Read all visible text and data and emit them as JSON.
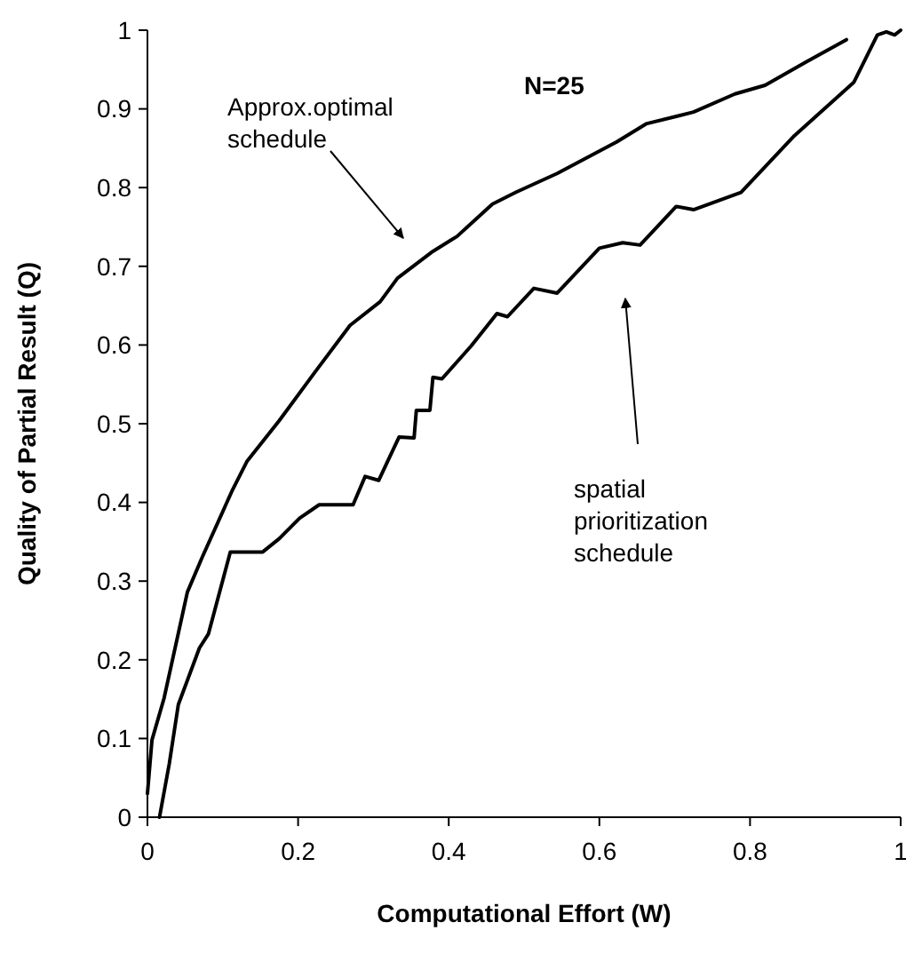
{
  "chart_data": {
    "type": "line",
    "xlabel": "Computational Effort (W)",
    "ylabel": "Quality of Partial Result (Q)",
    "xlim": [
      0,
      1
    ],
    "ylim": [
      0,
      1
    ],
    "xticks": [
      0,
      0.2,
      0.4,
      0.6,
      0.8,
      1
    ],
    "yticks": [
      0,
      0.1,
      0.2,
      0.3,
      0.4,
      0.5,
      0.6,
      0.7,
      0.8,
      0.9,
      1
    ],
    "grid": false,
    "marker": "none",
    "line_style": "solid",
    "annotations": [
      "Approx.optimal\nschedule",
      "N=25",
      "spatial\nprioritization\nschedule"
    ],
    "series": [
      {
        "color": "#000000",
        "x": [
          0,
          0.006,
          0.022,
          0.053,
          0.073,
          0.112,
          0.132,
          0.175,
          0.222,
          0.269,
          0.309,
          0.332,
          0.379,
          0.411,
          0.458,
          0.489,
          0.544,
          0.623,
          0.662,
          0.725,
          0.78,
          0.82,
          0.875,
          0.928
        ],
        "values": [
          0.03,
          0.098,
          0.151,
          0.286,
          0.331,
          0.414,
          0.452,
          0.504,
          0.565,
          0.625,
          0.655,
          0.685,
          0.719,
          0.738,
          0.779,
          0.794,
          0.818,
          0.858,
          0.881,
          0.896,
          0.919,
          0.93,
          0.96,
          0.988
        ]
      },
      {
        "color": "#000000",
        "x": [
          0.016,
          0.029,
          0.041,
          0.069,
          0.081,
          0.11,
          0.153,
          0.175,
          0.202,
          0.228,
          0.273,
          0.289,
          0.307,
          0.334,
          0.354,
          0.357,
          0.375,
          0.379,
          0.391,
          0.43,
          0.464,
          0.478,
          0.513,
          0.544,
          0.6,
          0.631,
          0.654,
          0.702,
          0.725,
          0.788,
          0.859,
          0.938,
          0.969,
          0.981,
          0.992,
          1
        ],
        "values": [
          0,
          0.068,
          0.143,
          0.215,
          0.233,
          0.337,
          0.337,
          0.354,
          0.38,
          0.397,
          0.397,
          0.433,
          0.428,
          0.483,
          0.482,
          0.517,
          0.517,
          0.559,
          0.557,
          0.599,
          0.64,
          0.636,
          0.672,
          0.666,
          0.723,
          0.73,
          0.727,
          0.776,
          0.772,
          0.794,
          0.866,
          0.934,
          0.994,
          0.998,
          0.994,
          1
        ]
      }
    ]
  }
}
